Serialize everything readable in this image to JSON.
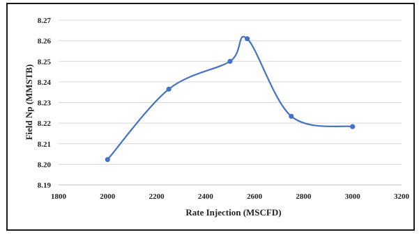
{
  "chart_data": {
    "type": "line",
    "smooth": true,
    "title": "",
    "xlabel": "Rate Injection (MSCFD)",
    "ylabel": "Field Np (MMSTB)",
    "xlim": [
      1800,
      3200
    ],
    "ylim": [
      8.19,
      8.27
    ],
    "x_ticks": [
      "1800",
      "2000",
      "2200",
      "2400",
      "2600",
      "2800",
      "3000",
      "3200"
    ],
    "y_ticks": [
      "8.19",
      "8.20",
      "8.21",
      "8.22",
      "8.23",
      "8.24",
      "8.25",
      "8.26",
      "8.27"
    ],
    "grid": "horizontal",
    "legend": "none",
    "series": [
      {
        "color": "#4472c4",
        "points": [
          {
            "x": 2000,
            "y": 8.2023
          },
          {
            "x": 2250,
            "y": 8.2365
          },
          {
            "x": 2500,
            "y": 8.25
          },
          {
            "x": 2570,
            "y": 8.261
          },
          {
            "x": 2750,
            "y": 8.2233
          },
          {
            "x": 3000,
            "y": 8.2183
          }
        ]
      }
    ],
    "gridColor": "#d9d9d9",
    "axisColor": "#bfbfbf"
  }
}
